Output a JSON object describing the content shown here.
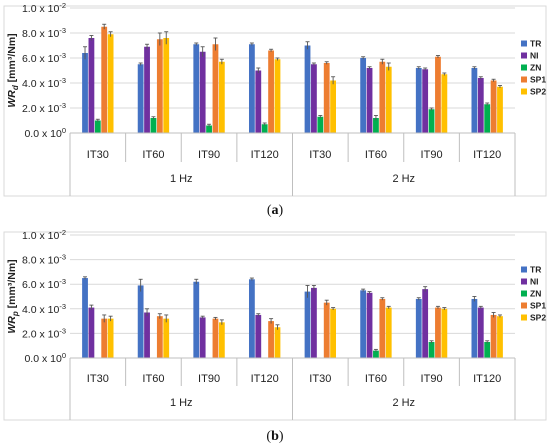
{
  "figure": {
    "caption_a": "a",
    "caption_b": "b"
  },
  "chart_data": [
    {
      "type": "bar",
      "panel": "a",
      "ylabel": {
        "prefix": "WR",
        "sub": "d",
        "unit": " [mm³/Nm]"
      },
      "yticks": [
        {
          "mant": "0.0 x 10",
          "exp": "0",
          "value": 0.0
        },
        {
          "mant": "2.0 x 10",
          "exp": "-3",
          "value": 0.002
        },
        {
          "mant": "4.0 x 10",
          "exp": "-3",
          "value": 0.004
        },
        {
          "mant": "6.0 x 10",
          "exp": "-3",
          "value": 0.006
        },
        {
          "mant": "8.0 x 10",
          "exp": "-3",
          "value": 0.008
        },
        {
          "mant": "1.0 x 10",
          "exp": "-2",
          "value": 0.01
        }
      ],
      "ylim": [
        0,
        0.01
      ],
      "grid": true,
      "legend_position": "right",
      "groups": [
        {
          "label": "1 Hz",
          "categories": [
            "IT30",
            "IT60",
            "IT90",
            "IT120"
          ]
        },
        {
          "label": "2 Hz",
          "categories": [
            "IT30",
            "IT60",
            "IT90",
            "IT120"
          ]
        }
      ],
      "series": [
        {
          "name": "TR",
          "color": "#4472c4",
          "values": [
            0.0064,
            0.0055,
            0.0071,
            0.0071,
            0.007,
            0.006,
            0.0052,
            0.0052
          ],
          "errors": [
            0.0005,
            0.0001,
            0.0001,
            0.0001,
            0.0003,
            0.0001,
            0.0001,
            0.0001
          ]
        },
        {
          "name": "NI",
          "color": "#7030a0",
          "values": [
            0.0076,
            0.0069,
            0.0065,
            0.005,
            0.0055,
            0.0052,
            0.0051,
            0.0044
          ],
          "errors": [
            0.0002,
            0.0002,
            0.0004,
            0.0002,
            0.0001,
            0.0001,
            0.0001,
            0.0001
          ]
        },
        {
          "name": "ZN",
          "color": "#00b050",
          "values": [
            0.001,
            0.0012,
            0.0006,
            0.0007,
            0.0013,
            0.0012,
            0.0019,
            0.0023
          ],
          "errors": [
            0.0001,
            0.0001,
            0.0001,
            0.0001,
            0.0001,
            0.0002,
            0.0001,
            0.0001
          ]
        },
        {
          "name": "SP1",
          "color": "#ed7d31",
          "values": [
            0.0085,
            0.0075,
            0.0071,
            0.0066,
            0.0056,
            0.0057,
            0.0061,
            0.0042
          ],
          "errors": [
            0.0002,
            0.0005,
            0.0005,
            0.0001,
            0.0001,
            0.0002,
            0.0001,
            0.0001
          ]
        },
        {
          "name": "SP2",
          "color": "#ffc000",
          "values": [
            0.0079,
            0.0076,
            0.0057,
            0.0059,
            0.0042,
            0.0053,
            0.0047,
            0.0037
          ],
          "errors": [
            0.0002,
            0.0005,
            0.0002,
            0.0001,
            0.0003,
            0.0003,
            0.0001,
            0.0001
          ]
        }
      ]
    },
    {
      "type": "bar",
      "panel": "b",
      "ylabel": {
        "prefix": "WR",
        "sub": "p",
        "unit": " [mm³/Nm]"
      },
      "yticks": [
        {
          "mant": "0.0 x 10",
          "exp": "0",
          "value": 0.0
        },
        {
          "mant": "2.0 x 10",
          "exp": "-3",
          "value": 0.002
        },
        {
          "mant": "4.0 x 10",
          "exp": "-3",
          "value": 0.004
        },
        {
          "mant": "6.0 x 10",
          "exp": "-3",
          "value": 0.006
        },
        {
          "mant": "8.0 x 10",
          "exp": "-3",
          "value": 0.008
        },
        {
          "mant": "1.0 x 10",
          "exp": "-2",
          "value": 0.01
        }
      ],
      "ylim": [
        0,
        0.01
      ],
      "grid": true,
      "legend_position": "right",
      "groups": [
        {
          "label": "1 Hz",
          "categories": [
            "IT30",
            "IT60",
            "IT90",
            "IT120"
          ]
        },
        {
          "label": "2 Hz",
          "categories": [
            "IT30",
            "IT60",
            "IT90",
            "IT120"
          ]
        }
      ],
      "series": [
        {
          "name": "TR",
          "color": "#4472c4",
          "values": [
            0.0065,
            0.0059,
            0.0062,
            0.0064,
            0.0054,
            0.0055,
            0.0048,
            0.0048
          ],
          "errors": [
            0.0001,
            0.0005,
            0.0002,
            0.0001,
            0.0005,
            0.0001,
            0.0001,
            0.0002
          ]
        },
        {
          "name": "NI",
          "color": "#7030a0",
          "values": [
            0.0041,
            0.0037,
            0.0033,
            0.0035,
            0.0057,
            0.0053,
            0.0056,
            0.0041
          ],
          "errors": [
            0.0002,
            0.0003,
            0.0001,
            0.0001,
            0.0002,
            0.0001,
            0.0002,
            0.0001
          ]
        },
        {
          "name": "ZN",
          "color": "#00b050",
          "values": [
            0.0,
            0.0,
            0.0,
            0.0,
            0.0,
            0.0006,
            0.0013,
            0.0013
          ],
          "errors": [
            0,
            0,
            0,
            0,
            0,
            0.0001,
            0.0001,
            0.0001
          ]
        },
        {
          "name": "SP1",
          "color": "#ed7d31",
          "values": [
            0.0032,
            0.0034,
            0.0032,
            0.003,
            0.0045,
            0.0048,
            0.0041,
            0.0035
          ],
          "errors": [
            0.0003,
            0.0002,
            0.0001,
            0.0002,
            0.0002,
            0.0001,
            0.0001,
            0.0002
          ]
        },
        {
          "name": "SP2",
          "color": "#ffc000",
          "values": [
            0.0032,
            0.0032,
            0.0029,
            0.0025,
            0.004,
            0.0041,
            0.004,
            0.0034
          ],
          "errors": [
            0.0002,
            0.0003,
            0.0002,
            0.0002,
            0.0001,
            0.0001,
            0.0001,
            0.0001
          ]
        }
      ]
    }
  ]
}
